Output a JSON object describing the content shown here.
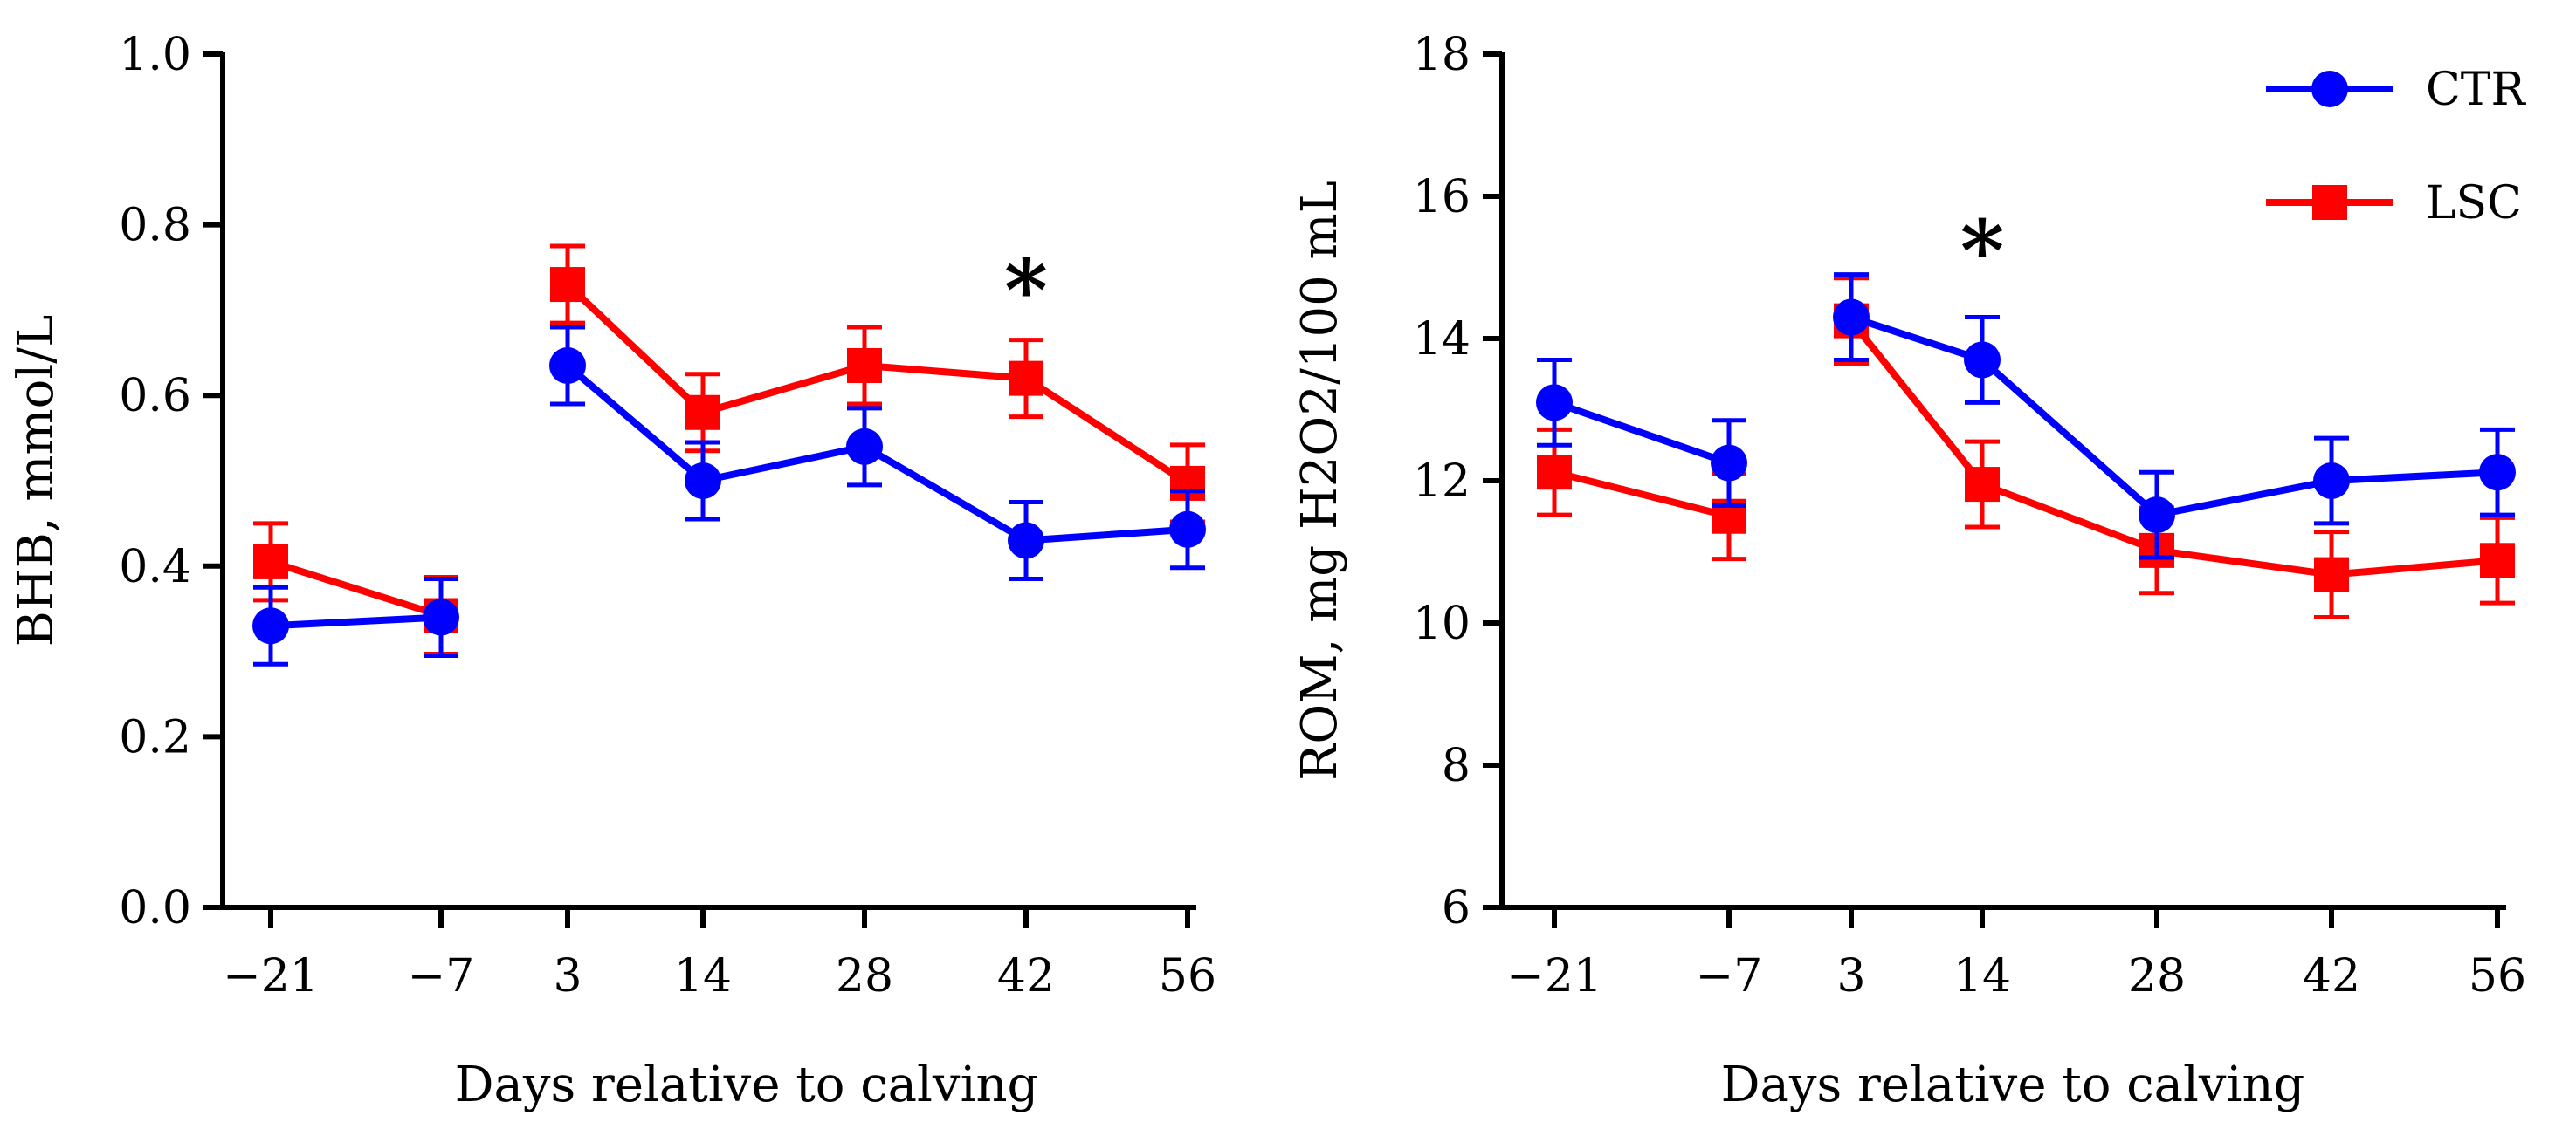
{
  "chart_data": [
    {
      "type": "line",
      "xlabel": "Days relative to calving",
      "ylabel": "BHB, mmol/L",
      "categories": [
        "−21",
        "−7",
        "3",
        "14",
        "28",
        "42",
        "56"
      ],
      "ylim": [
        0.0,
        1.0
      ],
      "yticks": [
        0.0,
        0.2,
        0.4,
        0.6,
        0.8,
        1.0
      ],
      "ytick_labels": [
        "0.0",
        "0.2",
        "0.4",
        "0.6",
        "0.8",
        "1.0"
      ],
      "gap_after_index": 1,
      "series": [
        {
          "name": "CTR",
          "color": "#0000ff",
          "marker": "circle",
          "values": [
            0.33,
            0.34,
            0.635,
            0.5,
            0.54,
            0.43,
            0.443
          ],
          "errors": [
            0.045,
            0.045,
            0.045,
            0.045,
            0.045,
            0.045,
            0.045
          ]
        },
        {
          "name": "LSC",
          "color": "#ff0000",
          "marker": "square",
          "values": [
            0.405,
            0.342,
            0.73,
            0.58,
            0.635,
            0.62,
            0.497
          ],
          "errors": [
            0.045,
            0.045,
            0.045,
            0.045,
            0.045,
            0.045,
            0.045
          ]
        }
      ],
      "annotations": [
        {
          "text": "*",
          "category_index": 5,
          "y": 0.75
        }
      ]
    },
    {
      "type": "line",
      "xlabel": "Days relative to calving",
      "ylabel": "ROM, mg H2O2/100 mL",
      "categories": [
        "−21",
        "−7",
        "3",
        "14",
        "28",
        "42",
        "56"
      ],
      "ylim": [
        6,
        18
      ],
      "yticks": [
        6,
        8,
        10,
        12,
        14,
        16,
        18
      ],
      "ytick_labels": [
        "6",
        "8",
        "10",
        "12",
        "14",
        "16",
        "18"
      ],
      "gap_after_index": 1,
      "legend": "top-right",
      "series": [
        {
          "name": "CTR",
          "color": "#0000ff",
          "marker": "circle",
          "values": [
            13.1,
            12.25,
            14.3,
            13.7,
            11.52,
            12.0,
            12.12
          ],
          "errors": [
            0.6,
            0.6,
            0.6,
            0.6,
            0.6,
            0.6,
            0.6
          ]
        },
        {
          "name": "LSC",
          "color": "#ff0000",
          "marker": "square",
          "values": [
            12.12,
            11.5,
            14.25,
            11.95,
            11.02,
            10.68,
            10.88
          ],
          "errors": [
            0.6,
            0.6,
            0.6,
            0.6,
            0.6,
            0.6,
            0.6
          ]
        }
      ],
      "annotations": [
        {
          "text": "*",
          "category_index": 3,
          "y": 15.55
        }
      ]
    }
  ]
}
